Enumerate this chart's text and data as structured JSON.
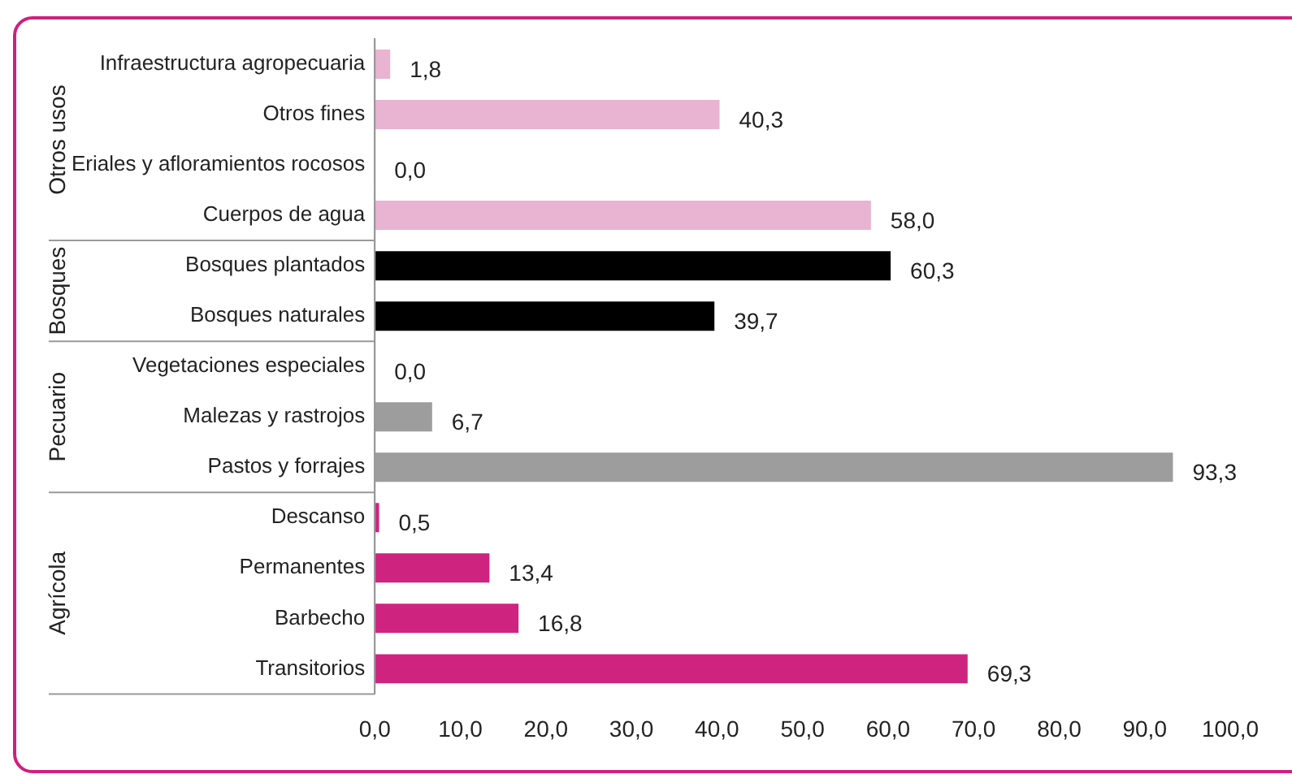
{
  "chart_data": {
    "type": "bar",
    "orientation": "horizontal",
    "stacked": true,
    "categories": [
      "Infraestructura agropecuaria",
      "Otros fines",
      "Eriales y afloramientos rocosos",
      "Cuerpos de agua",
      "Bosques plantados",
      "Bosques naturales",
      "Vegetaciones especiales",
      "Malezas y rastrojos",
      "Pastos y forrajes",
      "Descanso",
      "Permanentes",
      "Barbecho",
      "Transitorios"
    ],
    "annotations": [
      "Otros usos",
      "Bosques",
      "Pecuario",
      "Agrícola"
    ],
    "series": [
      {
        "color": "#e8b4d2",
        "values": [
          1.8,
          40.3,
          0.0,
          58.0,
          null,
          null,
          null,
          null,
          null,
          null,
          null,
          null,
          null
        ],
        "value_labels": [
          "1,8",
          "40,3",
          "0,0",
          "58,0",
          null,
          null,
          null,
          null,
          null,
          null,
          null,
          null,
          null
        ]
      },
      {
        "color": "#000000",
        "values": [
          null,
          null,
          null,
          null,
          60.3,
          39.7,
          null,
          null,
          null,
          null,
          null,
          null,
          null
        ],
        "value_labels": [
          null,
          null,
          null,
          null,
          "60,3",
          "39,7",
          null,
          null,
          null,
          null,
          null,
          null,
          null
        ]
      },
      {
        "color": "#9d9d9d",
        "values": [
          null,
          null,
          null,
          null,
          null,
          null,
          0.0,
          6.7,
          93.3,
          null,
          null,
          null,
          null
        ],
        "value_labels": [
          null,
          null,
          null,
          null,
          null,
          null,
          "0,0",
          "6,7",
          "93,3",
          null,
          null,
          null,
          null
        ]
      },
      {
        "color": "#cf2380",
        "values": [
          null,
          null,
          null,
          null,
          null,
          null,
          null,
          null,
          null,
          0.5,
          13.4,
          16.8,
          69.3
        ],
        "value_labels": [
          null,
          null,
          null,
          null,
          null,
          null,
          null,
          null,
          null,
          "0,5",
          "13,4",
          "16,8",
          "69,3"
        ]
      }
    ],
    "xlim": [
      0,
      100
    ],
    "xticks": [
      {
        "value": 0,
        "label": "0,0"
      },
      {
        "value": 10,
        "label": "10,0"
      },
      {
        "value": 20,
        "label": "20,0"
      },
      {
        "value": 30,
        "label": "30,0"
      },
      {
        "value": 40,
        "label": "40,0"
      },
      {
        "value": 50,
        "label": "50,0"
      },
      {
        "value": 60,
        "label": "60,0"
      },
      {
        "value": 70,
        "label": "70,0"
      },
      {
        "value": 80,
        "label": "80,0"
      },
      {
        "value": 90,
        "label": "90,0"
      },
      {
        "value": 100,
        "label": "100,0"
      }
    ],
    "grid": false,
    "legend": false
  }
}
